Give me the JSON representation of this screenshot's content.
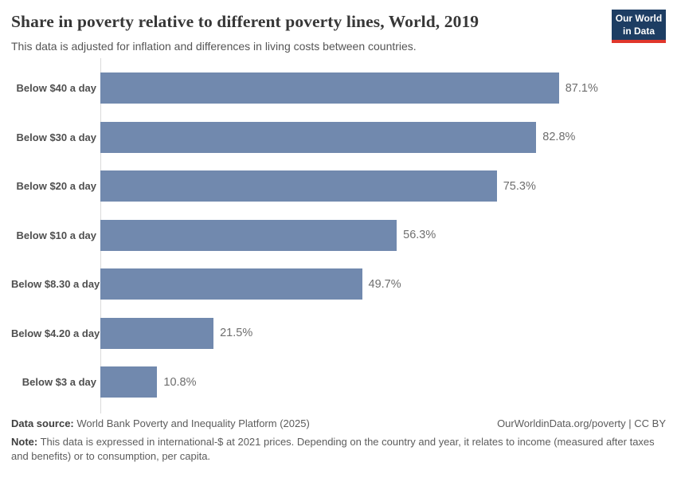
{
  "header": {
    "title": "Share in poverty relative to different poverty lines, World, 2019",
    "subtitle": "This data is adjusted for inflation and differences in living costs between countries.",
    "logo": {
      "line1": "Our World",
      "line2": "in Data"
    }
  },
  "chart_data": {
    "type": "bar",
    "orientation": "horizontal",
    "title": "Share in poverty relative to different poverty lines, World, 2019",
    "categories": [
      "Below $40 a day",
      "Below $30 a day",
      "Below $20 a day",
      "Below $10 a day",
      "Below $8.30 a day",
      "Below $4.20 a day",
      "Below $3 a day"
    ],
    "values": [
      87.1,
      82.8,
      75.3,
      56.3,
      49.7,
      21.5,
      10.8
    ],
    "value_labels": [
      "87.1%",
      "82.8%",
      "75.3%",
      "56.3%",
      "49.7%",
      "21.5%",
      "10.8%"
    ],
    "xlabel": "",
    "ylabel": "",
    "xlim": [
      0,
      100
    ],
    "grid": false,
    "legend": false,
    "bar_color": "#7189ae"
  },
  "footer": {
    "source_label": "Data source:",
    "source_text": "World Bank Poverty and Inequality Platform (2025)",
    "link": "OurWorldinData.org/poverty | CC BY",
    "note_label": "Note:",
    "note_text": "This data is expressed in international-$ at 2021 prices. Depending on the country and year, it relates to income (measured after taxes and benefits) or to consumption, per capita."
  },
  "colors": {
    "bar": "#7189ae",
    "logo_background": "#1d3d63",
    "logo_accent": "#e0362c",
    "axis_line": "#dadada",
    "title_text": "#373737",
    "muted_text": "#5c5c5c"
  }
}
